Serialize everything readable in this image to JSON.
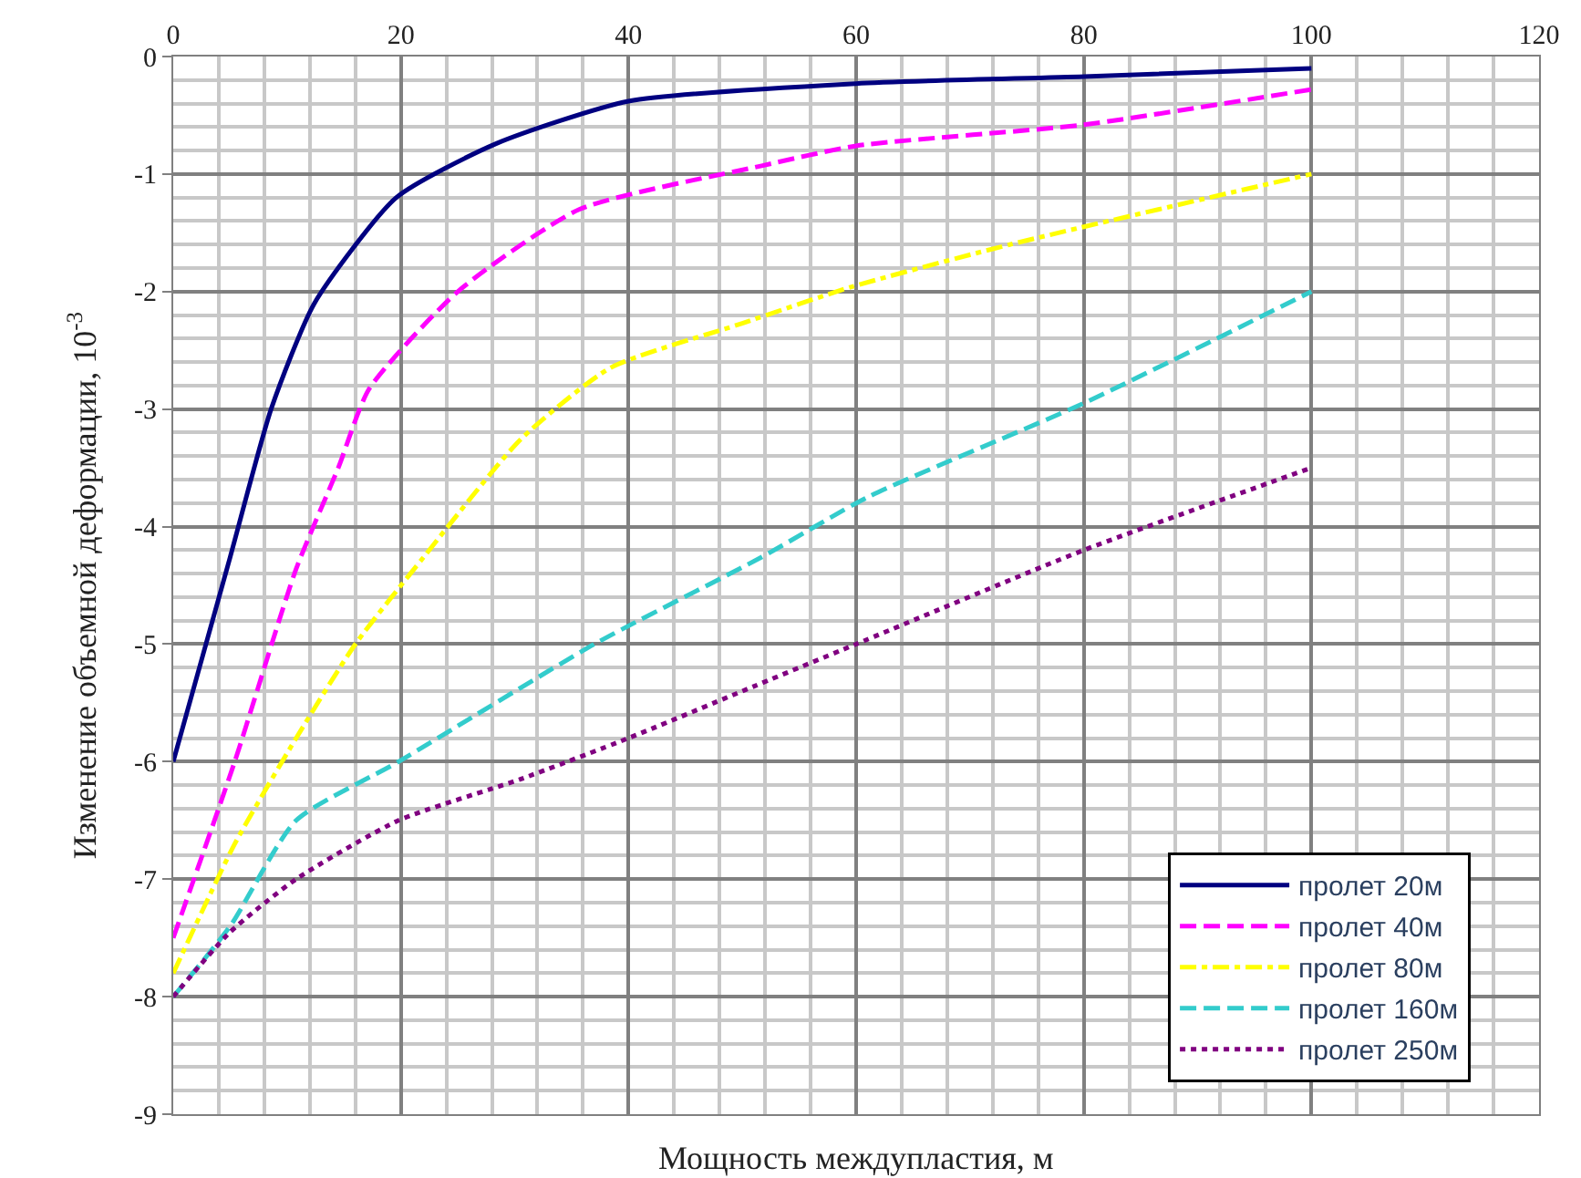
{
  "chart_data": {
    "type": "line",
    "xlabel": "Мощность междупластия, м",
    "ylabel": "Изменение объемной деформации, 10$^{-3}$",
    "xlim": [
      0,
      120
    ],
    "xticks": [
      0,
      20,
      40,
      60,
      80,
      100,
      120
    ],
    "ylim": [
      -9,
      0
    ],
    "yticks": [
      -9,
      -8,
      -7,
      -6,
      -5,
      -4,
      -3,
      -2,
      -1,
      0
    ],
    "grid": true,
    "legend": "bottom right",
    "marker": "none",
    "series": [
      {
        "name": "пролет 20м",
        "color": "#000080",
        "line_style": "solid",
        "x": [
          0,
          5,
          8.6,
          12.4,
          19.6,
          28.4,
          40,
          60,
          80,
          100
        ],
        "values": [
          -6,
          -4.26,
          -3,
          -2.1,
          -1.2,
          -0.74,
          -0.38,
          -0.23,
          -0.17,
          -0.1
        ]
      },
      {
        "name": "пролет 40м",
        "color": "#ff00ff",
        "line_style": "dashed",
        "x": [
          0,
          5.4,
          10.8,
          14.5,
          17.2,
          25,
          35.7,
          51.7,
          60,
          80,
          100
        ],
        "values": [
          -7.5,
          -6,
          -4.36,
          -3.5,
          -2.83,
          -2,
          -1.3,
          -0.93,
          -0.76,
          -0.58,
          -0.28
        ]
      },
      {
        "name": "пролет 80м",
        "color": "#ffff00",
        "line_style": "dashdot",
        "x": [
          0,
          5.4,
          10.8,
          16,
          22,
          30.5,
          38.4,
          50,
          59.6,
          73.5,
          100
        ],
        "values": [
          -7.8,
          -6.7,
          -5.8,
          -5,
          -4.26,
          -3.26,
          -2.65,
          -2.27,
          -1.96,
          -1.6,
          -1
        ]
      },
      {
        "name": "пролет 160м",
        "color": "#33cccc",
        "line_style": "dashed",
        "x": [
          0,
          5,
          10.8,
          19.8,
          37,
          51.7,
          61,
          80,
          100
        ],
        "values": [
          -8,
          -7.4,
          -6.5,
          -6,
          -5,
          -4.26,
          -3.75,
          -2.95,
          -2
        ]
      },
      {
        "name": "пролет 250м",
        "color": "#800080",
        "line_style": "dotted",
        "x": [
          0,
          5,
          10.8,
          19.8,
          30.5,
          40,
          50,
          60,
          80,
          100
        ],
        "values": [
          -8,
          -7.45,
          -7,
          -6.5,
          -6.15,
          -5.8,
          -5.4,
          -5,
          -4.2,
          -3.5
        ]
      }
    ]
  }
}
